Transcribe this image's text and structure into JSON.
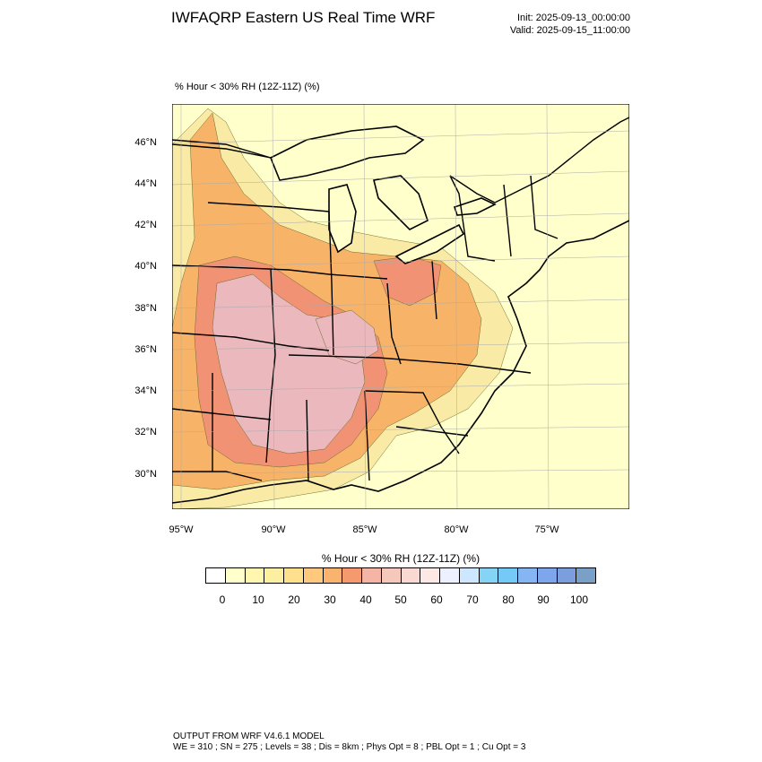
{
  "header": {
    "title": "IWFAQRP Eastern US Real Time WRF",
    "init": "Init: 2025-09-13_00:00:00",
    "valid": "Valid: 2025-09-15_11:00:00"
  },
  "map": {
    "field_label": "% Hour < 30% RH (12Z-11Z)   (%)",
    "lat_labels": [
      "46°N",
      "44°N",
      "42°N",
      "40°N",
      "38°N",
      "36°N",
      "34°N",
      "32°N",
      "30°N"
    ],
    "lon_labels": [
      "95°W",
      "90°W",
      "85°W",
      "80°W",
      "75°W"
    ],
    "colors": {
      "background": "#FFFFCC",
      "boundary": "#000000",
      "county": "#333333",
      "orange": "#F7B469",
      "salmon": "#F29275",
      "pink": "#EBB8BE",
      "pale_yellow": "#F9E9A4"
    }
  },
  "colorbar": {
    "title": "% Hour < 30% RH (12Z-11Z)  (%)",
    "colors": [
      "#FFFFFF",
      "#FFFFCC",
      "#FFF7B0",
      "#FCEFA0",
      "#FFE08C",
      "#FEC97C",
      "#F9B36F",
      "#F59A6E",
      "#F4B5A6",
      "#F6C8BC",
      "#FAD9D2",
      "#FCE9E6",
      "#EDF0FF",
      "#CCE7FF",
      "#84D4F6",
      "#75C9F6",
      "#86B5F4",
      "#7EA6EC",
      "#7B9EDD",
      "#7AA0C8"
    ],
    "labels": [
      "0",
      "10",
      "20",
      "30",
      "40",
      "50",
      "60",
      "70",
      "80",
      "90",
      "100"
    ]
  },
  "footer": {
    "line1": "OUTPUT FROM WRF V4.6.1 MODEL",
    "line2": "WE = 310 ; SN = 275 ; Levels = 38 ; Dis = 8km ; Phys Opt = 8 ; PBL Opt = 1 ; Cu Opt = 3"
  }
}
